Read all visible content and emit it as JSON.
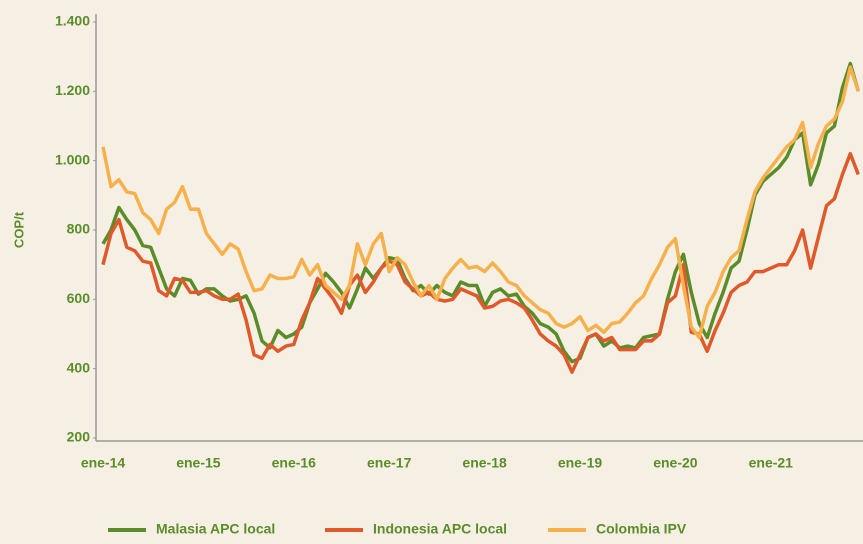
{
  "chart_data": {
    "type": "line",
    "y_label": "COP/t",
    "categories": [
      "ene-14",
      null,
      null,
      null,
      null,
      null,
      null,
      null,
      null,
      null,
      null,
      null,
      "ene-15",
      null,
      null,
      null,
      null,
      null,
      null,
      null,
      null,
      null,
      null,
      null,
      "ene-16",
      null,
      null,
      null,
      null,
      null,
      null,
      null,
      null,
      null,
      null,
      null,
      "ene-17",
      null,
      null,
      null,
      null,
      null,
      null,
      null,
      null,
      null,
      null,
      null,
      "ene-18",
      null,
      null,
      null,
      null,
      null,
      null,
      null,
      null,
      null,
      null,
      null,
      "ene-19",
      null,
      null,
      null,
      null,
      null,
      null,
      null,
      null,
      null,
      null,
      null,
      "ene-20",
      null,
      null,
      null,
      null,
      null,
      null,
      null,
      null,
      null,
      null,
      null,
      "ene-21",
      null,
      null,
      null,
      null,
      null,
      null,
      null,
      null,
      null,
      null,
      null
    ],
    "series": [
      {
        "name": "Malasia APC local",
        "color": "#5b8c2a",
        "values": [
          760,
          800,
          865,
          830,
          800,
          755,
          750,
          690,
          630,
          610,
          660,
          655,
          615,
          630,
          630,
          610,
          595,
          600,
          610,
          560,
          480,
          460,
          510,
          490,
          500,
          520,
          590,
          630,
          675,
          650,
          620,
          575,
          630,
          690,
          660,
          690,
          720,
          715,
          660,
          625,
          640,
          615,
          640,
          620,
          610,
          650,
          640,
          640,
          580,
          620,
          630,
          610,
          615,
          580,
          560,
          530,
          520,
          500,
          450,
          420,
          430,
          490,
          500,
          465,
          480,
          460,
          465,
          460,
          490,
          495,
          500,
          600,
          680,
          730,
          620,
          530,
          490,
          560,
          620,
          690,
          710,
          800,
          900,
          940,
          960,
          980,
          1010,
          1060,
          1080,
          930,
          990,
          1080,
          1100,
          1210,
          1280,
          1200
        ]
      },
      {
        "name": "Indonesia APC local",
        "color": "#e0592a",
        "values": [
          700,
          790,
          830,
          750,
          740,
          710,
          705,
          625,
          610,
          660,
          655,
          620,
          620,
          625,
          610,
          600,
          600,
          615,
          540,
          440,
          430,
          470,
          450,
          465,
          470,
          540,
          590,
          660,
          630,
          600,
          560,
          640,
          670,
          620,
          650,
          690,
          710,
          700,
          650,
          630,
          610,
          620,
          600,
          595,
          600,
          630,
          620,
          610,
          575,
          580,
          595,
          600,
          590,
          575,
          540,
          500,
          480,
          465,
          440,
          390,
          440,
          490,
          500,
          480,
          490,
          455,
          455,
          455,
          480,
          480,
          500,
          590,
          610,
          700,
          505,
          500,
          450,
          510,
          560,
          620,
          640,
          650,
          680,
          680,
          690,
          700,
          700,
          740,
          800,
          690,
          780,
          870,
          890,
          960,
          1020,
          960
        ]
      },
      {
        "name": "Colombia IPV",
        "color": "#f6b04c",
        "values": [
          1040,
          925,
          945,
          910,
          905,
          850,
          830,
          790,
          860,
          880,
          925,
          860,
          860,
          790,
          760,
          730,
          760,
          745,
          680,
          625,
          630,
          670,
          660,
          660,
          665,
          715,
          670,
          700,
          640,
          620,
          600,
          640,
          760,
          700,
          760,
          790,
          680,
          720,
          700,
          650,
          610,
          640,
          600,
          660,
          690,
          715,
          690,
          695,
          680,
          705,
          680,
          650,
          640,
          610,
          590,
          570,
          560,
          530,
          520,
          530,
          550,
          510,
          525,
          505,
          530,
          535,
          560,
          590,
          610,
          660,
          700,
          750,
          775,
          640,
          520,
          490,
          580,
          620,
          680,
          720,
          740,
          830,
          910,
          950,
          980,
          1010,
          1040,
          1060,
          1110,
          980,
          1050,
          1100,
          1120,
          1170,
          1270,
          1200
        ]
      }
    ],
    "ylim": [
      200,
      1400
    ],
    "yticks": [
      200,
      400,
      600,
      800,
      {
        "value": 1000,
        "label": "1.000"
      },
      {
        "value": 1200,
        "label": "1.200"
      },
      {
        "value": 1400,
        "label": "1.400"
      }
    ]
  }
}
